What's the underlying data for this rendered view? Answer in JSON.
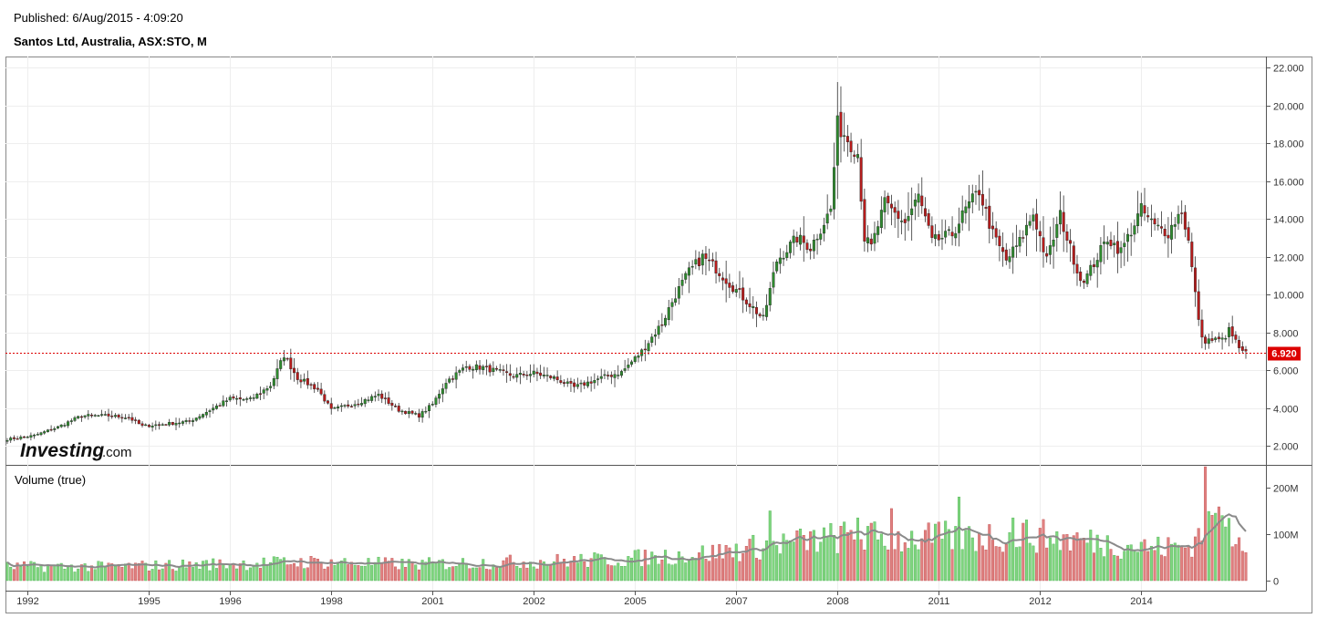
{
  "header": {
    "published": "Published: 6/Aug/2015 - 4:09:20",
    "title": "Santos Ltd, Australia, ASX:STO, M"
  },
  "logo": {
    "main": "Investing",
    "sub": ".com"
  },
  "colors": {
    "up_candle": "#2e8b2e",
    "down_candle": "#b71c1c",
    "up_volume": "#7fd67f",
    "down_volume": "#e08080",
    "volume_ma": "#8a8a8a",
    "last_price": "#dd0000",
    "grid": "#eeeeee"
  },
  "chart_data": [
    {
      "type": "candlestick",
      "title": "Santos Ltd, Australia, ASX:STO, M",
      "interval": "monthly",
      "ylim": [
        1.0,
        22.6
      ],
      "y_ticks": [
        "22.000",
        "20.000",
        "18.000",
        "16.000",
        "14.000",
        "12.000",
        "10.000",
        "8.000",
        "6.000",
        "4.000",
        "2.000"
      ],
      "x_ticks": [
        "1992",
        "1995",
        "1996",
        "1998",
        "2001",
        "2002",
        "2005",
        "2007",
        "2008",
        "2011",
        "2012",
        "2014"
      ],
      "last_price": 6.92,
      "last_price_label": "6.920",
      "close_anchors": [
        [
          0,
          2.35
        ],
        [
          8,
          2.55
        ],
        [
          15,
          3.0
        ],
        [
          22,
          3.6
        ],
        [
          30,
          3.6
        ],
        [
          36,
          3.5
        ],
        [
          40,
          3.05
        ],
        [
          46,
          3.15
        ],
        [
          54,
          3.3
        ],
        [
          60,
          3.9
        ],
        [
          66,
          4.5
        ],
        [
          72,
          4.45
        ],
        [
          78,
          5.2
        ],
        [
          82,
          6.8
        ],
        [
          86,
          5.6
        ],
        [
          92,
          5.0
        ],
        [
          96,
          3.9
        ],
        [
          104,
          4.3
        ],
        [
          110,
          4.7
        ],
        [
          116,
          3.9
        ],
        [
          122,
          3.6
        ],
        [
          126,
          4.2
        ],
        [
          130,
          5.4
        ],
        [
          136,
          6.2
        ],
        [
          141,
          6.15
        ],
        [
          150,
          5.7
        ],
        [
          156,
          5.85
        ],
        [
          162,
          5.6
        ],
        [
          168,
          5.1
        ],
        [
          176,
          5.6
        ],
        [
          182,
          5.9
        ],
        [
          188,
          7.0
        ],
        [
          194,
          8.5
        ],
        [
          198,
          10.0
        ],
        [
          202,
          11.2
        ],
        [
          206,
          12.0
        ],
        [
          210,
          11.4
        ],
        [
          214,
          10.6
        ],
        [
          220,
          9.5
        ],
        [
          224,
          8.7
        ],
        [
          228,
          11.8
        ],
        [
          234,
          13.0
        ],
        [
          238,
          12.5
        ],
        [
          244,
          14.5
        ],
        [
          246,
          19.0
        ],
        [
          248,
          18.5
        ],
        [
          252,
          17.5
        ],
        [
          254,
          13.0
        ],
        [
          256,
          12.5
        ],
        [
          260,
          14.8
        ],
        [
          266,
          13.8
        ],
        [
          270,
          15.2
        ],
        [
          274,
          12.8
        ],
        [
          280,
          13.2
        ],
        [
          284,
          14.5
        ],
        [
          288,
          15.5
        ],
        [
          292,
          13.2
        ],
        [
          296,
          11.8
        ],
        [
          300,
          12.8
        ],
        [
          304,
          14.3
        ],
        [
          308,
          11.8
        ],
        [
          312,
          14.2
        ],
        [
          314,
          13.0
        ],
        [
          318,
          10.8
        ],
        [
          320,
          11.0
        ],
        [
          326,
          13.0
        ],
        [
          330,
          12.3
        ],
        [
          336,
          14.5
        ],
        [
          340,
          13.6
        ],
        [
          344,
          13.3
        ],
        [
          348,
          14.5
        ],
        [
          350,
          12.8
        ],
        [
          352,
          10.0
        ],
        [
          354,
          7.6
        ],
        [
          360,
          7.6
        ],
        [
          362,
          8.1
        ],
        [
          366,
          6.92
        ]
      ]
    },
    {
      "type": "bar",
      "title": "Volume (true)",
      "y_ticks": [
        "200M",
        "100M",
        "0"
      ],
      "ylim": [
        0,
        245
      ],
      "unit": "M",
      "volume_anchors": [
        [
          0,
          30
        ],
        [
          30,
          30
        ],
        [
          60,
          35
        ],
        [
          90,
          40
        ],
        [
          120,
          35
        ],
        [
          150,
          40
        ],
        [
          180,
          45
        ],
        [
          210,
          60
        ],
        [
          230,
          80
        ],
        [
          250,
          95
        ],
        [
          270,
          90
        ],
        [
          290,
          95
        ],
        [
          300,
          100
        ],
        [
          320,
          85
        ],
        [
          340,
          70
        ],
        [
          350,
          75
        ],
        [
          356,
          120
        ],
        [
          362,
          110
        ],
        [
          366,
          95
        ]
      ],
      "volume_spikes": [
        [
          226,
          150
        ],
        [
          252,
          135
        ],
        [
          262,
          155
        ],
        [
          282,
          180
        ],
        [
          298,
          135
        ],
        [
          355,
          245
        ],
        [
          358,
          145
        ],
        [
          360,
          140
        ]
      ],
      "moving_average_series": "Volume (true)"
    }
  ]
}
